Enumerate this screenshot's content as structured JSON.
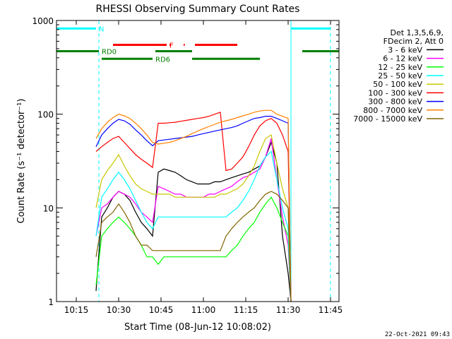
{
  "chart_data": {
    "type": "line",
    "title": "RHESSI Observing Summary Count Rates",
    "xlabel": "Start Time (08-Jun-12 10:08:02)",
    "ylabel": "Count Rate (s⁻¹ detector⁻¹)",
    "x_unit": "minutes after 10:08:02",
    "xlim": [
      0,
      100
    ],
    "ylim": [
      1,
      1000
    ],
    "y_scale": "log",
    "x_ticks": [
      {
        "value": 7,
        "label": "10:15"
      },
      {
        "value": 22,
        "label": "10:30"
      },
      {
        "value": 37,
        "label": "10:45"
      },
      {
        "value": 52,
        "label": "11:00"
      },
      {
        "value": 67,
        "label": "11:15"
      },
      {
        "value": 82,
        "label": "11:30"
      },
      {
        "value": 97,
        "label": "11:45"
      }
    ],
    "y_ticks": [
      {
        "value": 1,
        "label": "1"
      },
      {
        "value": 10,
        "label": "10"
      },
      {
        "value": 100,
        "label": "100"
      },
      {
        "value": 1000,
        "label": "1000"
      }
    ],
    "legend_position": "right",
    "legend_header": [
      "Det 1,3,5,6,9,",
      "FDecim 2, Att 0"
    ],
    "grid": false,
    "x": [
      14,
      16,
      18,
      20,
      22,
      24,
      26,
      28,
      30,
      32,
      34,
      36,
      38,
      40,
      42,
      44,
      46,
      48,
      50,
      52,
      54,
      56,
      58,
      60,
      62,
      64,
      66,
      68,
      70,
      72,
      74,
      76,
      78,
      80,
      82,
      83
    ],
    "series": [
      {
        "name": "3 - 6 keV",
        "color": "#000000",
        "values": [
          1.3,
          8,
          10,
          13,
          15,
          14,
          12,
          9,
          7,
          6,
          5,
          24,
          26,
          25,
          24,
          22,
          20,
          19,
          18,
          18,
          18,
          19,
          19,
          20,
          21,
          22,
          23,
          24,
          26,
          28,
          35,
          50,
          30,
          5,
          2,
          1
        ]
      },
      {
        "name": "6 - 12 keV",
        "color": "#ff00ff",
        "values": [
          5,
          10,
          11,
          13,
          15,
          14,
          13,
          11,
          9,
          8,
          7,
          17,
          16,
          15,
          14,
          14,
          13,
          13,
          13,
          13,
          14,
          14,
          15,
          16,
          17,
          19,
          21,
          22,
          24,
          26,
          35,
          55,
          20,
          8,
          4,
          1
        ]
      },
      {
        "name": "12 - 25 keV",
        "color": "#00ff00",
        "values": [
          1.5,
          5,
          6,
          7,
          8,
          7,
          6,
          5,
          4,
          3,
          3,
          2.5,
          3,
          3,
          3,
          3,
          3,
          3,
          3,
          3,
          3,
          3,
          3,
          3,
          3.5,
          4,
          5,
          6,
          7,
          9,
          11,
          13,
          10,
          7,
          5,
          1
        ]
      },
      {
        "name": "25 - 50 keV",
        "color": "#00ffff",
        "values": [
          5,
          13,
          16,
          20,
          24,
          20,
          16,
          12,
          9,
          7,
          6,
          8,
          8,
          8,
          8,
          8,
          8,
          8,
          8,
          8,
          8,
          8,
          8,
          8,
          9,
          10,
          12,
          15,
          20,
          28,
          35,
          40,
          20,
          10,
          6,
          1
        ]
      },
      {
        "name": "50 - 100 keV",
        "color": "#c8c800",
        "values": [
          10,
          20,
          25,
          30,
          37,
          28,
          22,
          18,
          16,
          15,
          14,
          14,
          14,
          14,
          13,
          13,
          13,
          13,
          13,
          13,
          13,
          13,
          14,
          14,
          15,
          16,
          18,
          22,
          28,
          40,
          55,
          60,
          30,
          16,
          10,
          1
        ]
      },
      {
        "name": "100 - 300 keV",
        "color": "#ff0000",
        "values": [
          40,
          45,
          50,
          55,
          58,
          50,
          43,
          37,
          33,
          30,
          27,
          80,
          80,
          81,
          82,
          84,
          86,
          88,
          90,
          92,
          95,
          100,
          105,
          25,
          26,
          30,
          35,
          45,
          60,
          75,
          85,
          90,
          80,
          60,
          40,
          1
        ]
      },
      {
        "name": "300 - 800 keV",
        "color": "#0000ff",
        "values": [
          45,
          60,
          70,
          80,
          88,
          85,
          78,
          68,
          60,
          52,
          46,
          52,
          53,
          54,
          55,
          56,
          57,
          58,
          60,
          62,
          64,
          66,
          68,
          70,
          72,
          75,
          80,
          85,
          90,
          92,
          95,
          95,
          90,
          85,
          80,
          1
        ]
      },
      {
        "name": "800 - 7000 keV",
        "color": "#ff8000",
        "values": [
          55,
          70,
          82,
          92,
          100,
          96,
          90,
          80,
          70,
          60,
          50,
          48,
          49,
          50,
          52,
          55,
          58,
          62,
          66,
          70,
          74,
          78,
          82,
          85,
          88,
          92,
          96,
          100,
          105,
          108,
          110,
          110,
          100,
          95,
          90,
          1
        ]
      },
      {
        "name": "7000 - 15000 keV",
        "color": "#806400",
        "values": [
          3,
          7,
          8,
          9,
          11,
          9,
          7,
          5,
          4,
          4,
          3.5,
          3.5,
          3.5,
          3.5,
          3.5,
          3.5,
          3.5,
          3.5,
          3.5,
          3.5,
          3.5,
          3.5,
          3.5,
          5,
          6,
          7,
          8,
          9,
          10,
          12,
          14,
          15,
          14,
          12,
          10,
          1
        ]
      }
    ],
    "attenuator_bars": [
      {
        "label": "N",
        "color": "#00ffff",
        "y": 820,
        "segments": [
          [
            0,
            14
          ],
          [
            83,
            97
          ]
        ]
      },
      {
        "label": "F",
        "color": "#ff0000",
        "y": 550,
        "segments": [
          [
            20,
            39
          ],
          [
            40,
            40.5
          ],
          [
            45,
            45.4
          ],
          [
            49,
            64
          ]
        ]
      },
      {
        "label": "RD0",
        "color": "#008000",
        "y": 470,
        "segments": [
          [
            0,
            15
          ],
          [
            35,
            48
          ],
          [
            87,
            100
          ]
        ]
      },
      {
        "label": "RD6",
        "color": "#008000",
        "y": 390,
        "segments": [
          [
            16,
            34
          ],
          [
            48,
            72
          ]
        ]
      }
    ],
    "vertical_markers": [
      {
        "x": 0,
        "style": "solid",
        "color": "#00ffff"
      },
      {
        "x": 15,
        "style": "dashed",
        "color": "#00ffff"
      },
      {
        "x": 83,
        "style": "solid",
        "color": "#00ffff"
      },
      {
        "x": 97,
        "style": "dashed",
        "color": "#00ffff"
      }
    ]
  },
  "footer_timestamp": "22-Oct-2021 09:43"
}
